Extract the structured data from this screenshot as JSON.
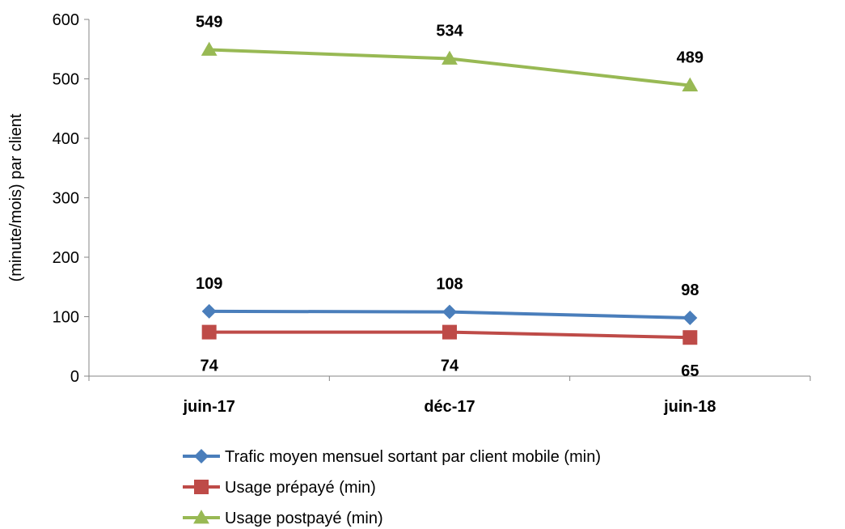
{
  "chart_data": {
    "type": "line",
    "categories": [
      "juin-17",
      "déc-17",
      "juin-18"
    ],
    "series": [
      {
        "name": "Trafic moyen mensuel sortant par client mobile (min)",
        "values": [
          109,
          108,
          98
        ],
        "color": "#4a7ebb",
        "marker": "diamond",
        "label_position": "above"
      },
      {
        "name": "Usage prépayé (min)",
        "values": [
          74,
          74,
          65
        ],
        "color": "#be4b48",
        "marker": "square",
        "label_position": "below"
      },
      {
        "name": "Usage postpayé (min)",
        "values": [
          549,
          534,
          489
        ],
        "color": "#98b954",
        "marker": "triangle",
        "label_position": "above"
      }
    ],
    "title": "",
    "xlabel": "",
    "ylabel": "(minute/mois) par client",
    "ylim": [
      0,
      600
    ],
    "yticks": [
      0,
      100,
      200,
      300,
      400,
      500,
      600
    ],
    "grid": false,
    "legend_position": "bottom"
  }
}
